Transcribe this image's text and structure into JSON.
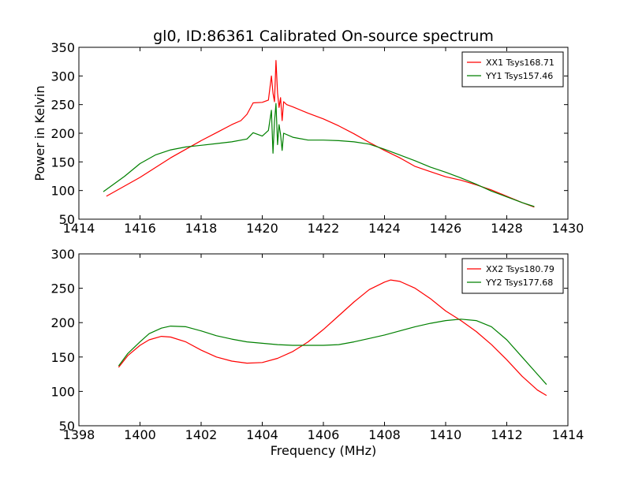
{
  "chart_data": [
    {
      "type": "line",
      "title": "gl0, ID:86361 Calibrated On-source spectrum",
      "xlabel": "",
      "ylabel": "Power in Kelvin",
      "xlim": [
        1414,
        1430
      ],
      "ylim": [
        50,
        350
      ],
      "xticks": [
        1414,
        1416,
        1418,
        1420,
        1422,
        1424,
        1426,
        1428,
        1430
      ],
      "yticks": [
        50,
        100,
        150,
        200,
        250,
        300,
        350
      ],
      "grid": false,
      "legend_position": "top-right",
      "series": [
        {
          "name": "XX1 Tsys168.71",
          "color": "#ff0000",
          "x": [
            1414.9,
            1415.5,
            1416.0,
            1416.5,
            1417.0,
            1417.5,
            1418.0,
            1418.5,
            1419.0,
            1419.3,
            1419.5,
            1419.7,
            1420.0,
            1420.2,
            1420.3,
            1420.35,
            1420.4,
            1420.45,
            1420.5,
            1420.55,
            1420.6,
            1420.65,
            1420.7,
            1420.8,
            1421.0,
            1421.5,
            1422.0,
            1422.5,
            1423.0,
            1423.5,
            1424.0,
            1424.5,
            1425.0,
            1425.5,
            1426.0,
            1426.5,
            1427.0,
            1427.5,
            1428.0,
            1428.5,
            1428.9
          ],
          "y": [
            90,
            108,
            123,
            140,
            157,
            172,
            187,
            201,
            215,
            222,
            233,
            253,
            254,
            258,
            300,
            270,
            255,
            327,
            270,
            245,
            262,
            222,
            255,
            250,
            246,
            235,
            225,
            213,
            199,
            184,
            170,
            157,
            142,
            133,
            124,
            118,
            110,
            101,
            90,
            79,
            71
          ]
        },
        {
          "name": "YY1 Tsys157.46",
          "color": "#008000",
          "x": [
            1414.8,
            1415.5,
            1416.0,
            1416.5,
            1417.0,
            1417.5,
            1418.0,
            1418.5,
            1419.0,
            1419.5,
            1419.7,
            1420.0,
            1420.2,
            1420.3,
            1420.35,
            1420.4,
            1420.45,
            1420.5,
            1420.55,
            1420.6,
            1420.65,
            1420.7,
            1421.0,
            1421.5,
            1422.0,
            1422.5,
            1423.0,
            1423.5,
            1424.0,
            1424.5,
            1425.0,
            1425.5,
            1426.0,
            1426.5,
            1427.0,
            1427.5,
            1428.0,
            1428.5,
            1428.9
          ],
          "y": [
            98,
            125,
            147,
            162,
            171,
            176,
            179,
            182,
            185,
            190,
            201,
            195,
            205,
            240,
            165,
            220,
            252,
            180,
            215,
            198,
            170,
            200,
            193,
            188,
            188,
            187,
            185,
            181,
            172,
            162,
            152,
            141,
            132,
            122,
            111,
            99,
            89,
            79,
            72
          ]
        }
      ]
    },
    {
      "type": "line",
      "title": "",
      "xlabel": "Frequency (MHz)",
      "ylabel": "",
      "xlim": [
        1398,
        1414
      ],
      "ylim": [
        50,
        300
      ],
      "xticks": [
        1398,
        1400,
        1402,
        1404,
        1406,
        1408,
        1410,
        1412,
        1414
      ],
      "yticks": [
        50,
        100,
        150,
        200,
        250,
        300
      ],
      "grid": false,
      "legend_position": "top-right",
      "series": [
        {
          "name": "XX2 Tsys180.79",
          "color": "#ff0000",
          "x": [
            1399.3,
            1399.6,
            1400.0,
            1400.3,
            1400.7,
            1401.0,
            1401.5,
            1402.0,
            1402.5,
            1403.0,
            1403.5,
            1404.0,
            1404.5,
            1405.0,
            1405.5,
            1406.0,
            1406.5,
            1407.0,
            1407.5,
            1408.0,
            1408.2,
            1408.5,
            1409.0,
            1409.5,
            1410.0,
            1410.5,
            1411.0,
            1411.5,
            1412.0,
            1412.5,
            1413.0,
            1413.3
          ],
          "y": [
            135,
            152,
            167,
            175,
            180,
            179,
            172,
            160,
            150,
            144,
            141,
            142,
            148,
            158,
            172,
            190,
            210,
            230,
            248,
            259,
            262,
            260,
            250,
            235,
            217,
            203,
            187,
            168,
            146,
            122,
            102,
            94
          ]
        },
        {
          "name": "YY2 Tsys177.68",
          "color": "#008000",
          "x": [
            1399.3,
            1399.6,
            1400.0,
            1400.3,
            1400.7,
            1401.0,
            1401.5,
            1402.0,
            1402.5,
            1403.0,
            1403.5,
            1404.0,
            1404.5,
            1405.0,
            1405.5,
            1406.0,
            1406.5,
            1407.0,
            1407.5,
            1408.0,
            1408.5,
            1409.0,
            1409.5,
            1410.0,
            1410.5,
            1411.0,
            1411.5,
            1412.0,
            1412.5,
            1413.0,
            1413.3
          ],
          "y": [
            137,
            155,
            172,
            184,
            192,
            195,
            194,
            188,
            181,
            176,
            172,
            170,
            168,
            167,
            167,
            167,
            168,
            172,
            177,
            182,
            188,
            194,
            199,
            203,
            205,
            203,
            194,
            175,
            150,
            125,
            110
          ]
        }
      ]
    }
  ]
}
